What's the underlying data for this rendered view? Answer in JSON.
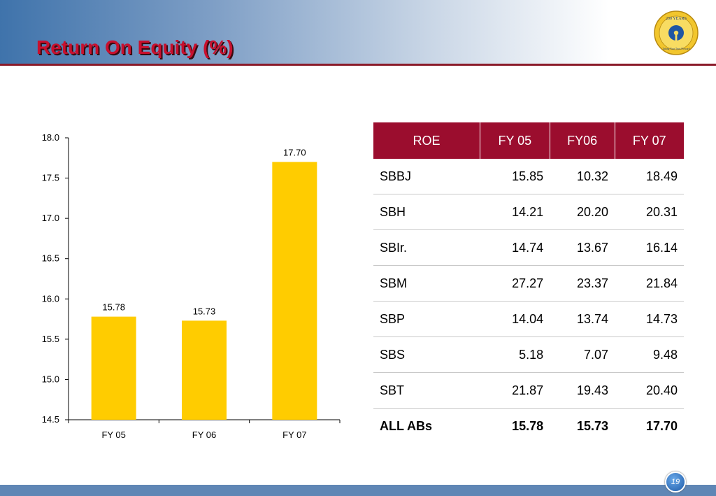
{
  "header": {
    "title": "Return On Equity (%)",
    "logo_icon": "sbi-200-years-seal-icon",
    "logo_top_text": "200 YEARS",
    "logo_bottom_text": "Taking Your Trust Forward"
  },
  "colors": {
    "title": "#c8102e",
    "header_rule": "#8b1b2a",
    "bar": "#ffcc00",
    "table_header": "#9b0d2e",
    "footer": "#5f86b5"
  },
  "chart_data": {
    "type": "bar",
    "categories": [
      "FY 05",
      "FY 06",
      "FY 07"
    ],
    "values": [
      15.78,
      15.73,
      17.7
    ],
    "data_labels": [
      "15.78",
      "15.73",
      "17.70"
    ],
    "title": "",
    "xlabel": "",
    "ylabel": "",
    "ylim": [
      14.5,
      18.0
    ],
    "yticks": [
      "14.5",
      "15.0",
      "15.5",
      "16.0",
      "16.5",
      "17.0",
      "17.5",
      "18.0"
    ],
    "grid": false,
    "legend": "none"
  },
  "table": {
    "columns": [
      "ROE",
      "FY 05",
      "FY06",
      "FY 07"
    ],
    "rows": [
      [
        "SBBJ",
        "15.85",
        "10.32",
        "18.49"
      ],
      [
        "SBH",
        "14.21",
        "20.20",
        "20.31"
      ],
      [
        "SBIr.",
        "14.74",
        "13.67",
        "16.14"
      ],
      [
        "SBM",
        "27.27",
        "23.37",
        "21.84"
      ],
      [
        "SBP",
        "14.04",
        "13.74",
        "14.73"
      ],
      [
        "SBS",
        "5.18",
        "7.07",
        "9.48"
      ],
      [
        "SBT",
        "21.87",
        "19.43",
        "20.40"
      ]
    ],
    "total": [
      "ALL ABs",
      "15.78",
      "15.73",
      "17.70"
    ]
  },
  "footer": {
    "page_number": "19"
  }
}
